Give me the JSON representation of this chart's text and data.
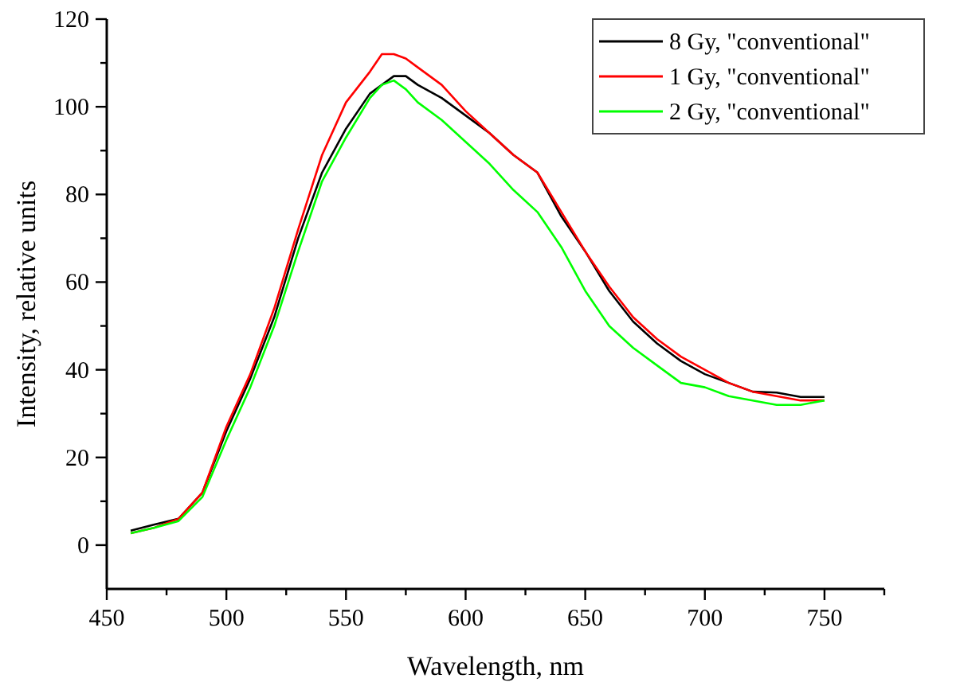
{
  "chart_data": {
    "type": "line",
    "xlabel": "Wavelength, nm",
    "ylabel": "Intensity, relative units",
    "xlim": [
      450,
      775
    ],
    "ylim": [
      -10,
      120
    ],
    "xticks": [
      450,
      {
        "value": 475,
        "label": null
      },
      500,
      {
        "value": 525,
        "label": null
      },
      550,
      {
        "value": 575,
        "label": null
      },
      600,
      {
        "value": 625,
        "label": null
      },
      650,
      {
        "value": 675,
        "label": null
      },
      700,
      {
        "value": 725,
        "label": null
      },
      750,
      {
        "value": 775,
        "label": null
      }
    ],
    "yticks": [
      0,
      {
        "value": 10,
        "label": null
      },
      20,
      {
        "value": 30,
        "label": null
      },
      40,
      {
        "value": 50,
        "label": null
      },
      60,
      {
        "value": 70,
        "label": null
      },
      80,
      {
        "value": 90,
        "label": null
      },
      100,
      {
        "value": 110,
        "label": null
      },
      120
    ],
    "grid": false,
    "legend": "top right",
    "marker": "none",
    "line_style": "solid",
    "x": [
      460,
      470,
      480,
      490,
      500,
      510,
      520,
      530,
      540,
      550,
      560,
      565,
      570,
      575,
      580,
      590,
      600,
      610,
      620,
      630,
      640,
      650,
      660,
      670,
      680,
      690,
      700,
      710,
      720,
      730,
      740,
      750
    ],
    "series": [
      {
        "name": "8 Gy, \"conventional\"",
        "color": "#000000",
        "values": [
          3.3,
          4.7,
          6,
          12,
          26,
          38,
          52,
          70,
          85,
          95,
          103,
          105,
          107,
          107,
          105,
          102,
          98,
          94,
          89,
          85,
          75,
          67,
          58,
          51,
          46,
          42,
          39,
          37,
          35,
          34.8,
          33.8,
          33.8
        ]
      },
      {
        "name": "1 Gy, \"conventional\"",
        "color": "#ff0000",
        "values": [
          2.7,
          4,
          6,
          12,
          27,
          39,
          54,
          72,
          89,
          101,
          108,
          112,
          112,
          111,
          109,
          105,
          99,
          94,
          89,
          85,
          76,
          67,
          59,
          52,
          47,
          43,
          40,
          37,
          35,
          34,
          33,
          33
        ]
      },
      {
        "name": "2 Gy, \"conventional\"",
        "color": "#00ff00",
        "values": [
          2.7,
          4,
          5.5,
          11,
          24,
          36,
          50,
          67,
          83,
          93,
          102,
          105,
          106,
          104,
          101,
          97,
          92,
          87,
          81,
          76,
          68,
          58,
          50,
          45,
          41,
          37,
          36,
          34,
          33,
          32,
          32,
          33
        ]
      }
    ]
  }
}
